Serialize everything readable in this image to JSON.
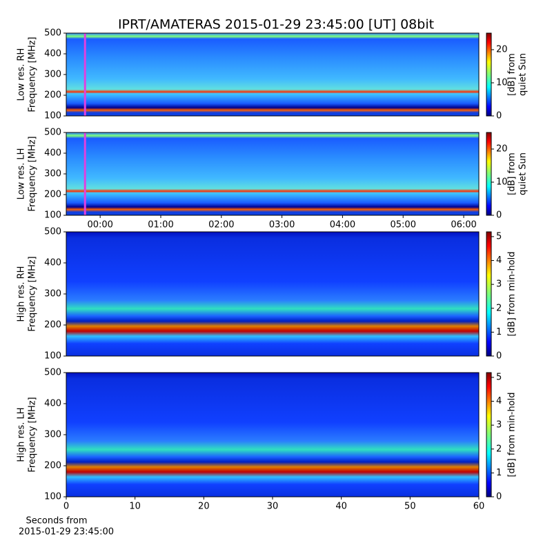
{
  "chart_data": [
    {
      "type": "heatmap",
      "title": "IPRT/AMATERAS 2015-01-29 23:45:00 [UT]   08bit",
      "ylabel": [
        "Low res. RH",
        "Frequency [MHz]"
      ],
      "xlim": [
        -0.56,
        6.25
      ],
      "ylim": [
        100,
        500
      ],
      "yticks": [
        100,
        200,
        300,
        400,
        500
      ],
      "vline": {
        "x": -0.25,
        "color": "#e040e0"
      },
      "clim": [
        0,
        25
      ],
      "cticks": [
        0,
        10,
        20
      ],
      "clabel": [
        "[dB] from",
        "quiet Sun"
      ]
    },
    {
      "type": "heatmap",
      "ylabel": [
        "Low res. LH",
        "Frequency [MHz]"
      ],
      "xlim": [
        -0.56,
        6.25
      ],
      "ylim": [
        100,
        500
      ],
      "yticks": [
        100,
        200,
        300,
        400,
        500
      ],
      "xticks": [
        {
          "value": 0,
          "label": "00:00"
        },
        {
          "value": 1,
          "label": "01:00"
        },
        {
          "value": 2,
          "label": "02:00"
        },
        {
          "value": 3,
          "label": "03:00"
        },
        {
          "value": 4,
          "label": "04:00"
        },
        {
          "value": 5,
          "label": "05:00"
        },
        {
          "value": 6,
          "label": "06:00"
        }
      ],
      "vline": {
        "x": -0.25,
        "color": "#e040e0"
      },
      "clim": [
        0,
        25
      ],
      "cticks": [
        0,
        10,
        20
      ],
      "clabel": [
        "[dB] from",
        "quiet Sun"
      ]
    },
    {
      "type": "heatmap",
      "ylabel": [
        "High res. RH",
        "Frequency [MHz]"
      ],
      "xlim": [
        0,
        60
      ],
      "ylim": [
        100,
        500
      ],
      "yticks": [
        100,
        200,
        300,
        400,
        500
      ],
      "clim": [
        0,
        5.2
      ],
      "cticks": [
        0,
        1,
        2,
        3,
        4,
        5
      ],
      "clabel": [
        "[dB] from min-hold"
      ]
    },
    {
      "type": "heatmap",
      "ylabel": [
        "High res. LH",
        "Frequency [MHz]"
      ],
      "xlim": [
        0,
        60
      ],
      "ylim": [
        100,
        500
      ],
      "yticks": [
        100,
        200,
        300,
        400,
        500
      ],
      "xticks": [
        0,
        10,
        20,
        30,
        40,
        50,
        60
      ],
      "xlabel": [
        "Seconds from",
        "2015-01-29 23:45:00"
      ],
      "clim": [
        0,
        5.2
      ],
      "cticks": [
        0,
        1,
        2,
        3,
        4,
        5
      ],
      "clabel": [
        "[dB] from min-hold"
      ]
    }
  ]
}
